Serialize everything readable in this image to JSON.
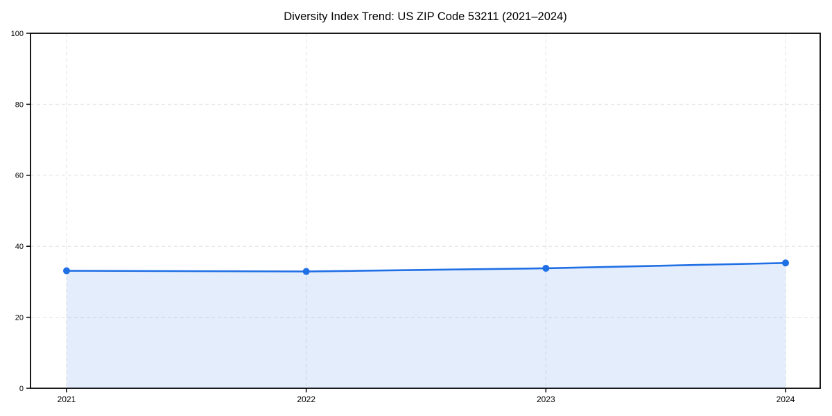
{
  "chart_data": {
    "type": "area",
    "title": "Diversity Index Trend: US ZIP Code 53211 (2021–2024)",
    "series_name": "Diversity Index",
    "categories": [
      "2021",
      "2022",
      "2023",
      "2024"
    ],
    "x": [
      2021,
      2022,
      2023,
      2024
    ],
    "values": [
      33.1,
      32.9,
      33.8,
      35.3
    ],
    "xlabel": "",
    "ylabel": "",
    "ylim": [
      0,
      100
    ],
    "yticks": [
      0,
      20,
      40,
      60,
      80,
      100
    ],
    "ytick_labels": [
      "0",
      "20",
      "40",
      "60",
      "80",
      "100"
    ],
    "grid": true,
    "grid_style": "dashed",
    "legend": false,
    "colors": {
      "line": "#1f6fe5",
      "fill": "#1f6fe5",
      "fill_opacity": 0.12,
      "marker": "#1f6fe5",
      "grid": "#e0e0e0",
      "axis": "#000000",
      "background": "#ffffff"
    }
  }
}
